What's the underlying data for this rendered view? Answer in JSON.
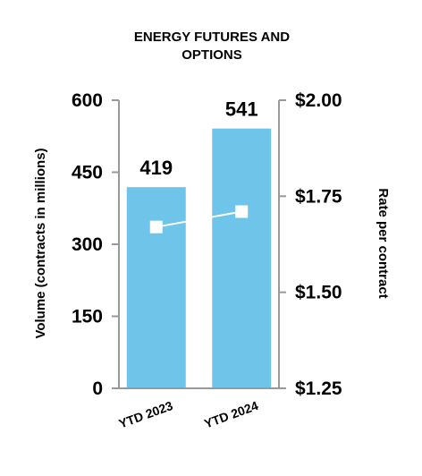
{
  "chart_data": {
    "type": "bar",
    "title_lines": [
      "ENERGY FUTURES AND",
      "OPTIONS"
    ],
    "categories": [
      "YTD 2023",
      "YTD 2024"
    ],
    "series": [
      {
        "type": "bar",
        "axis": "left",
        "color": "#6fc4ea",
        "values": [
          419,
          541
        ],
        "data_labels": [
          "419",
          "541"
        ]
      },
      {
        "type": "line",
        "axis": "right",
        "color": "#ffffff",
        "values": [
          1.67,
          1.71
        ]
      }
    ],
    "ylabel_left": "Volume (contracts in millions)",
    "ylabel_right": "Rate per contract",
    "ylim_left": [
      0,
      600
    ],
    "ylim_right": [
      1.25,
      2.0
    ],
    "yticks_left": [
      {
        "value": 0,
        "label": "0"
      },
      {
        "value": 150,
        "label": "150"
      },
      {
        "value": 300,
        "label": "300"
      },
      {
        "value": 450,
        "label": "450"
      },
      {
        "value": 600,
        "label": "600"
      }
    ],
    "yticks_right": [
      {
        "value": 1.25,
        "label": "$1.25"
      },
      {
        "value": 1.5,
        "label": "$1.50"
      },
      {
        "value": 1.75,
        "label": "$1.75"
      },
      {
        "value": 2.0,
        "label": "$2.00"
      }
    ],
    "axis_color": "#999999",
    "grid": false,
    "legend": "none"
  }
}
